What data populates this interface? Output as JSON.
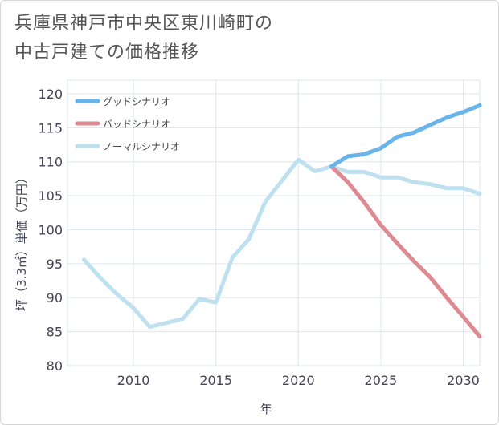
{
  "title_lines": [
    "兵庫県神戸市中央区東川崎町の",
    "中古戸建ての価格推移"
  ],
  "chart_data": {
    "type": "line",
    "title": "兵庫県神戸市中央区東川崎町の中古戸建ての価格推移",
    "xlabel": "年",
    "ylabel": "坪（3.3㎡）単価（万円）",
    "xlim": [
      2006,
      2031
    ],
    "ylim": [
      80,
      122
    ],
    "x_ticks": [
      2010,
      2015,
      2020,
      2025,
      2030
    ],
    "y_ticks": [
      80,
      85,
      90,
      95,
      100,
      105,
      110,
      115,
      120
    ],
    "grid": true,
    "legend_position": "top-left",
    "series": [
      {
        "name": "グッドシナリオ",
        "color": "#6ab4ec",
        "x": [
          2022,
          2023,
          2024,
          2025,
          2026,
          2027,
          2028,
          2029,
          2030,
          2031
        ],
        "y": [
          109.3,
          110.8,
          111.1,
          112.0,
          113.7,
          114.3,
          115.4,
          116.5,
          117.3,
          118.3
        ]
      },
      {
        "name": "バッドシナリオ",
        "color": "#de8a93",
        "x": [
          2022,
          2023,
          2024,
          2025,
          2026,
          2027,
          2028,
          2029,
          2030,
          2031
        ],
        "y": [
          109.3,
          107.0,
          104.0,
          100.7,
          98.0,
          95.4,
          93.0,
          90.0,
          87.2,
          84.3
        ]
      },
      {
        "name": "ノーマルシナリオ",
        "color": "#bfe0ee",
        "x": [
          2007,
          2008,
          2009,
          2010,
          2011,
          2012,
          2013,
          2014,
          2015,
          2016,
          2017,
          2018,
          2019,
          2020,
          2021,
          2022,
          2023,
          2024,
          2025,
          2026,
          2027,
          2028,
          2029,
          2030,
          2031
        ],
        "y": [
          95.6,
          92.9,
          90.5,
          88.5,
          85.7,
          86.3,
          86.9,
          89.8,
          89.3,
          95.9,
          98.6,
          104.1,
          107.2,
          110.3,
          108.6,
          109.3,
          108.5,
          108.5,
          107.7,
          107.7,
          107.0,
          106.7,
          106.1,
          106.1,
          105.3
        ]
      }
    ]
  }
}
